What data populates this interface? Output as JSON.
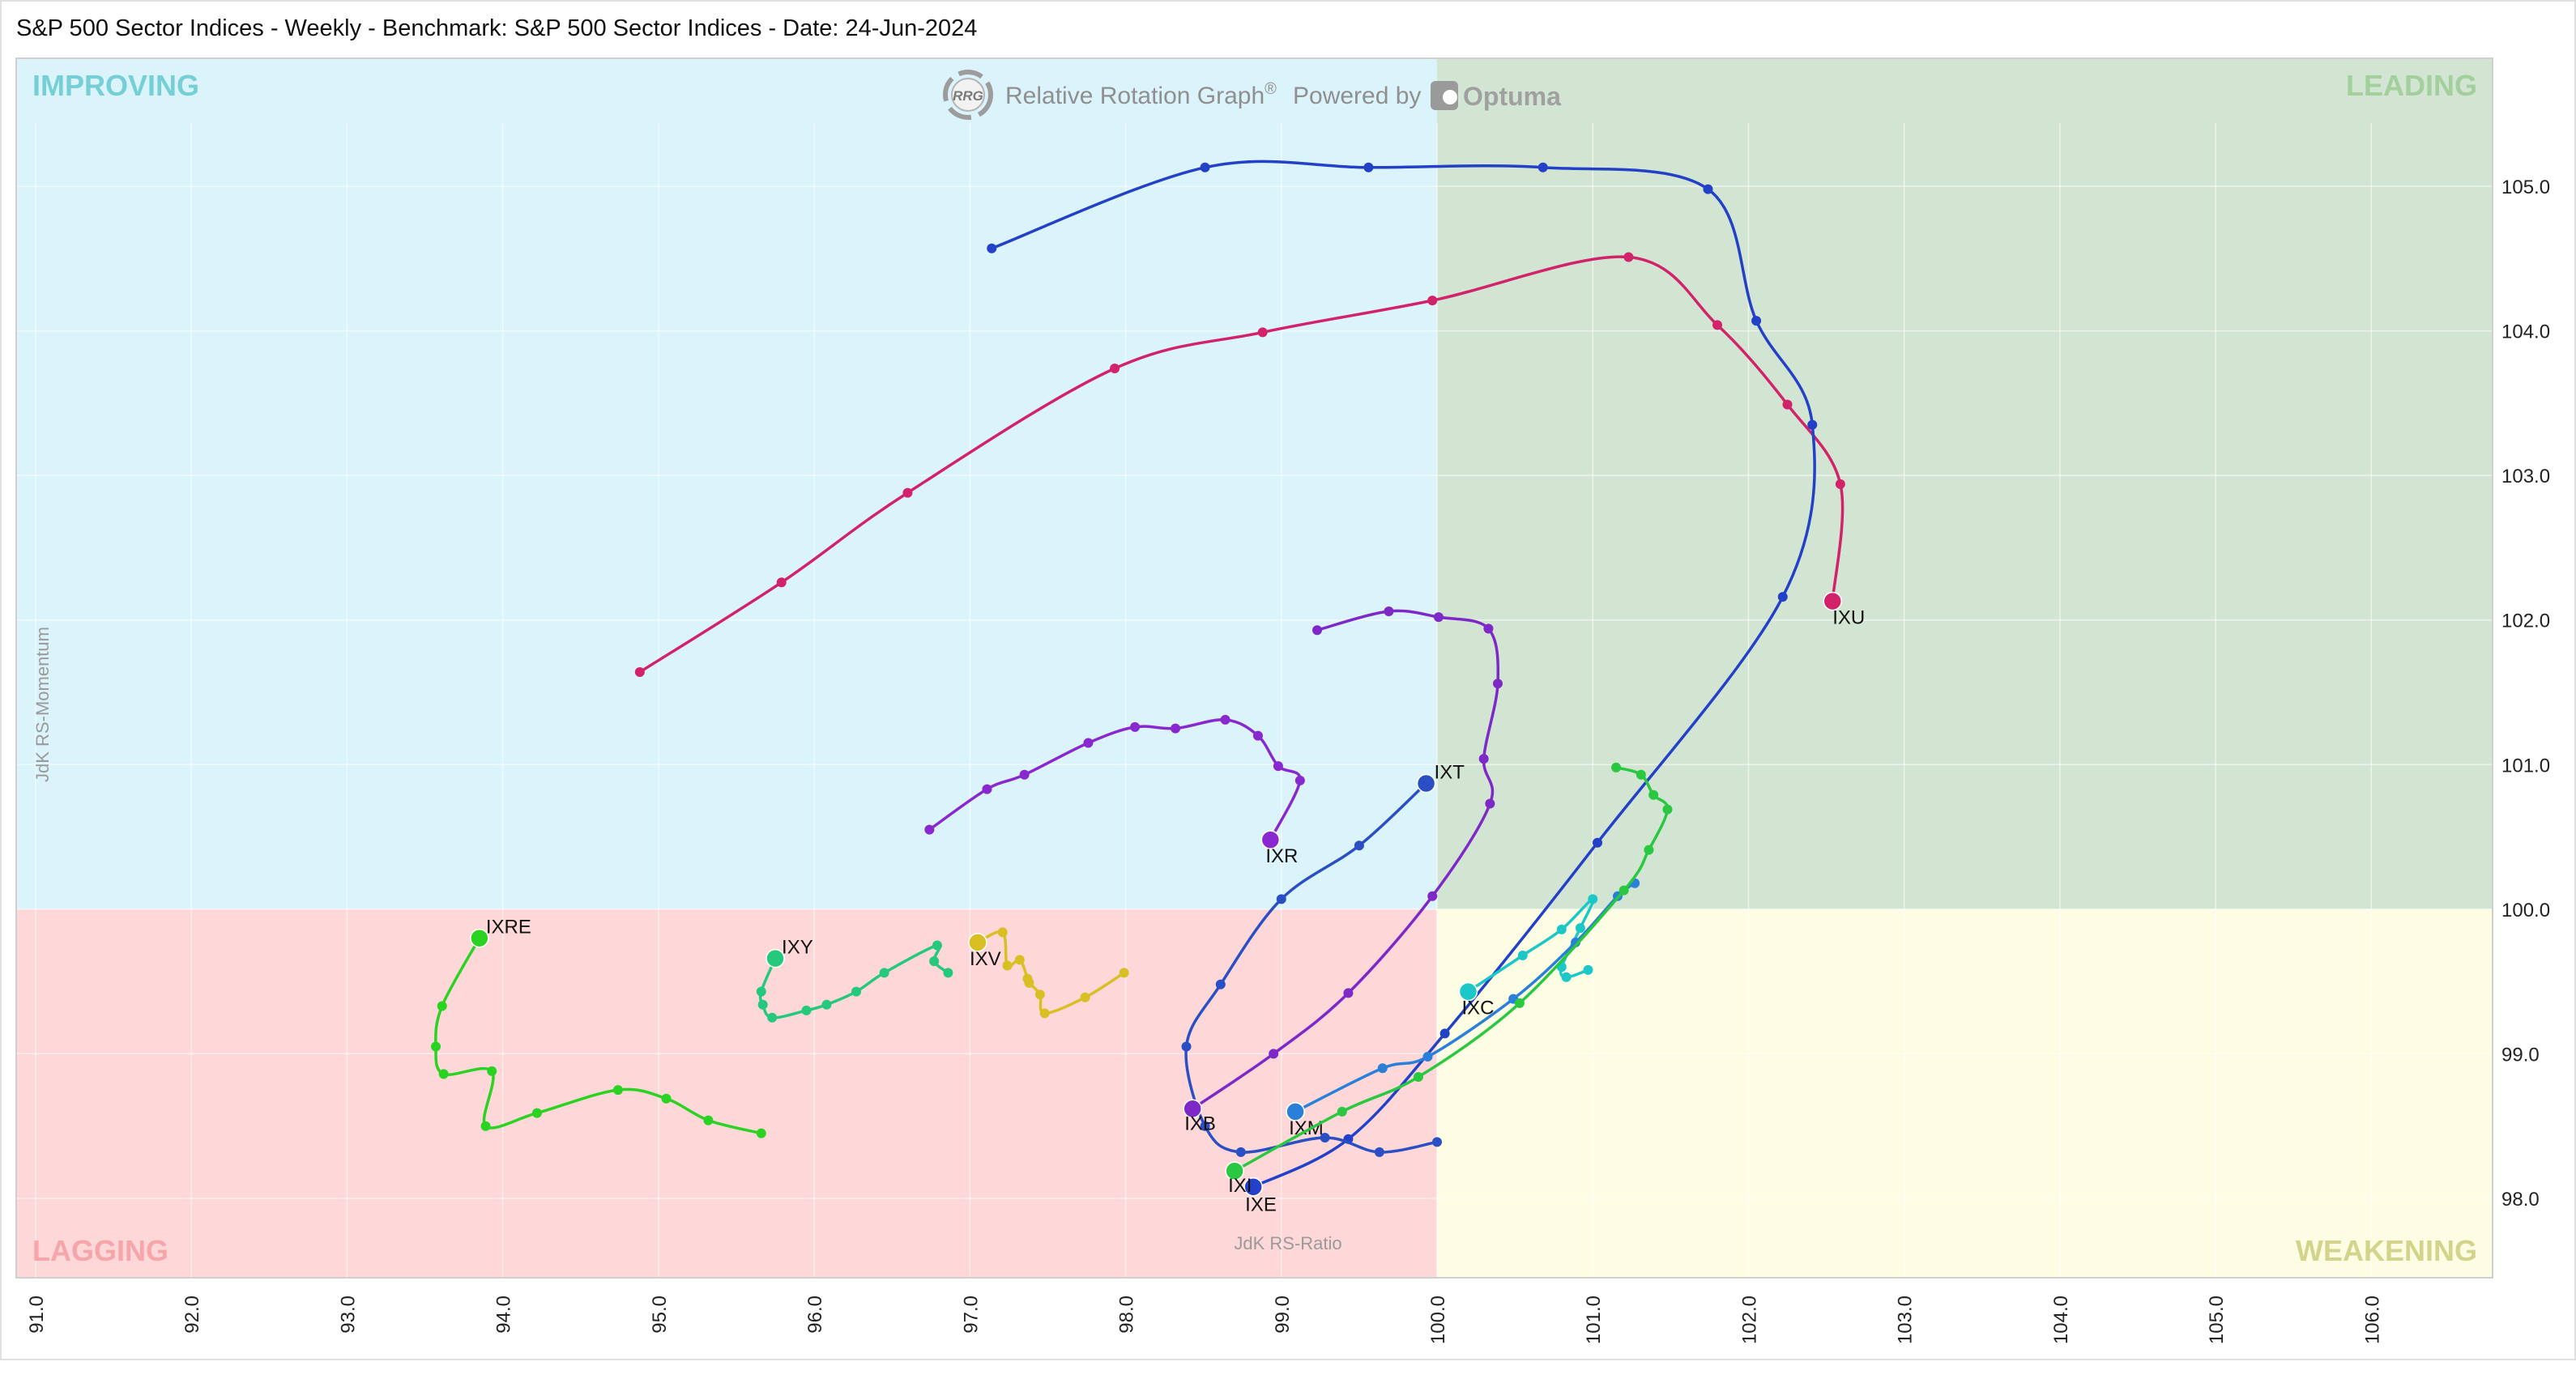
{
  "header": {
    "title": "S&P 500 Sector Indices - Weekly - Benchmark: S&P 500 Sector Indices - Date: 24-Jun-2024"
  },
  "branding": {
    "logo_text": "RRG",
    "graph_name": "Relative Rotation Graph",
    "registered": "®",
    "powered_by": "Powered by",
    "vendor": "Optuma"
  },
  "quadrants": {
    "improving": "IMPROVING",
    "leading": "LEADING",
    "lagging": "LAGGING",
    "weakening": "WEAKENING"
  },
  "chart_data": {
    "type": "scatter",
    "title": "S&P 500 Sector Indices - Weekly - Benchmark: S&P 500 Sector Indices - Date: 24-Jun-2024",
    "xlabel": "JdK RS-Ratio",
    "ylabel": "JdK RS-Momentum",
    "xlim": [
      91.0,
      106.6
    ],
    "ylim": [
      97.5,
      105.9
    ],
    "x_ticks": [
      "91.0",
      "92.0",
      "93.0",
      "94.0",
      "95.0",
      "96.0",
      "97.0",
      "98.0",
      "99.0",
      "100.0",
      "101.0",
      "102.0",
      "103.0",
      "104.0",
      "105.0",
      "106.0"
    ],
    "y_ticks": [
      "98.0",
      "99.0",
      "100.0",
      "101.0",
      "102.0",
      "103.0",
      "104.0",
      "105.0"
    ],
    "center": [
      100.0,
      100.0
    ],
    "grid": true,
    "quadrant_colors": {
      "improving": "#dbf3fb",
      "leading": "#d2e5d2",
      "lagging": "#fed7d8",
      "weakening": "#fdfde4"
    },
    "quadrant_label_colors": {
      "improving": "#77cfd6",
      "leading": "#a3cf9c",
      "lagging": "#f6a5aa",
      "weakening": "#d3d48c"
    },
    "series": [
      {
        "name": "IXU",
        "color": "#d2226a",
        "label_dx": 0,
        "label_dy": 28,
        "points": [
          [
            94.88,
            101.64
          ],
          [
            95.79,
            102.26
          ],
          [
            96.6,
            102.88
          ],
          [
            97.93,
            103.74
          ],
          [
            98.88,
            103.99
          ],
          [
            99.97,
            104.21
          ],
          [
            101.23,
            104.51
          ],
          [
            101.8,
            104.04
          ],
          [
            102.25,
            103.49
          ],
          [
            102.59,
            102.94
          ],
          [
            102.54,
            102.13
          ]
        ]
      },
      {
        "name": "IXE",
        "color": "#2340c8",
        "label_dx": -10,
        "label_dy": 30,
        "points": [
          [
            97.14,
            104.57
          ],
          [
            98.51,
            105.13
          ],
          [
            99.56,
            105.13
          ],
          [
            100.68,
            105.13
          ],
          [
            101.74,
            104.98
          ],
          [
            102.05,
            104.07
          ],
          [
            102.41,
            103.35
          ],
          [
            102.22,
            102.16
          ],
          [
            101.03,
            100.46
          ],
          [
            100.05,
            99.14
          ],
          [
            99.43,
            98.41
          ],
          [
            98.82,
            98.08
          ]
        ]
      },
      {
        "name": "IXT",
        "color": "#2a4fc4",
        "label_dx": 10,
        "label_dy": -6,
        "points": [
          [
            100.0,
            98.39
          ],
          [
            99.63,
            98.32
          ],
          [
            99.28,
            98.42
          ],
          [
            98.74,
            98.32
          ],
          [
            98.51,
            98.5
          ],
          [
            98.39,
            99.05
          ],
          [
            98.61,
            99.48
          ],
          [
            99.0,
            100.07
          ],
          [
            99.5,
            100.44
          ],
          [
            99.93,
            100.87
          ]
        ]
      },
      {
        "name": "IXR",
        "color": "#8a28d0",
        "label_dx": -6,
        "label_dy": 28,
        "points": [
          [
            96.74,
            100.55
          ],
          [
            97.11,
            100.83
          ],
          [
            97.35,
            100.93
          ],
          [
            97.76,
            101.15
          ],
          [
            98.06,
            101.26
          ],
          [
            98.32,
            101.25
          ],
          [
            98.64,
            101.31
          ],
          [
            98.85,
            101.2
          ],
          [
            98.98,
            100.99
          ],
          [
            99.12,
            100.89
          ],
          [
            98.93,
            100.48
          ]
        ]
      },
      {
        "name": "IXB",
        "color": "#7e28c8",
        "label_dx": -10,
        "label_dy": 26,
        "points": [
          [
            99.23,
            101.93
          ],
          [
            99.69,
            102.06
          ],
          [
            100.01,
            102.02
          ],
          [
            100.33,
            101.94
          ],
          [
            100.39,
            101.56
          ],
          [
            100.3,
            101.04
          ],
          [
            100.34,
            100.73
          ],
          [
            99.97,
            100.09
          ],
          [
            99.43,
            99.42
          ],
          [
            98.95,
            99.0
          ],
          [
            98.43,
            98.62
          ]
        ]
      },
      {
        "name": "IXC",
        "color": "#1cc7c7",
        "label_dx": -8,
        "label_dy": 28,
        "points": [
          [
            100.97,
            99.58
          ],
          [
            100.83,
            99.53
          ],
          [
            100.8,
            99.6
          ],
          [
            100.92,
            99.87
          ],
          [
            101.0,
            100.07
          ],
          [
            100.8,
            99.86
          ],
          [
            100.55,
            99.68
          ],
          [
            100.2,
            99.43
          ]
        ]
      },
      {
        "name": "IXM",
        "color": "#2a7fd8",
        "label_dx": -8,
        "label_dy": 28,
        "points": [
          [
            101.27,
            100.18
          ],
          [
            101.16,
            100.09
          ],
          [
            100.89,
            99.77
          ],
          [
            100.49,
            99.38
          ],
          [
            99.94,
            98.98
          ],
          [
            99.65,
            98.9
          ],
          [
            99.09,
            98.6
          ]
        ]
      },
      {
        "name": "IXI",
        "color": "#29c840",
        "label_dx": -8,
        "label_dy": 26,
        "points": [
          [
            101.15,
            100.98
          ],
          [
            101.31,
            100.93
          ],
          [
            101.39,
            100.79
          ],
          [
            101.48,
            100.69
          ],
          [
            101.36,
            100.41
          ],
          [
            101.2,
            100.13
          ],
          [
            100.53,
            99.35
          ],
          [
            99.88,
            98.84
          ],
          [
            99.39,
            98.6
          ],
          [
            98.7,
            98.19
          ]
        ]
      },
      {
        "name": "IXV",
        "color": "#d8c024",
        "label_dx": -10,
        "label_dy": 28,
        "points": [
          [
            97.99,
            99.56
          ],
          [
            97.74,
            99.39
          ],
          [
            97.48,
            99.28
          ],
          [
            97.45,
            99.41
          ],
          [
            97.38,
            99.49
          ],
          [
            97.37,
            99.52
          ],
          [
            97.32,
            99.65
          ],
          [
            97.24,
            99.61
          ],
          [
            97.21,
            99.84
          ],
          [
            97.05,
            99.77
          ]
        ]
      },
      {
        "name": "IXY",
        "color": "#24c97e",
        "label_dx": 8,
        "label_dy": -6,
        "points": [
          [
            96.86,
            99.56
          ],
          [
            96.77,
            99.64
          ],
          [
            96.79,
            99.75
          ],
          [
            96.45,
            99.56
          ],
          [
            96.27,
            99.43
          ],
          [
            96.08,
            99.34
          ],
          [
            95.95,
            99.3
          ],
          [
            95.73,
            99.25
          ],
          [
            95.67,
            99.34
          ],
          [
            95.66,
            99.43
          ],
          [
            95.75,
            99.66
          ]
        ]
      },
      {
        "name": "IXRE",
        "color": "#2ad222",
        "label_dx": 8,
        "label_dy": -6,
        "points": [
          [
            95.66,
            98.45
          ],
          [
            95.32,
            98.54
          ],
          [
            95.05,
            98.69
          ],
          [
            94.74,
            98.75
          ],
          [
            94.22,
            98.59
          ],
          [
            93.89,
            98.5
          ],
          [
            93.93,
            98.88
          ],
          [
            93.62,
            98.86
          ],
          [
            93.57,
            99.05
          ],
          [
            93.61,
            99.33
          ],
          [
            93.85,
            99.8
          ]
        ]
      }
    ]
  }
}
